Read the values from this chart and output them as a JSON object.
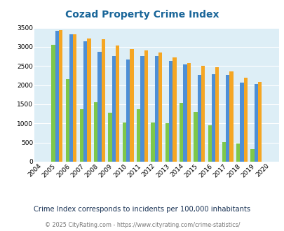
{
  "title": "Cozad Property Crime Index",
  "years": [
    2004,
    2005,
    2006,
    2007,
    2008,
    2009,
    2010,
    2011,
    2012,
    2013,
    2014,
    2015,
    2016,
    2017,
    2018,
    2019,
    2020
  ],
  "cozad": [
    null,
    3050,
    2150,
    1380,
    1550,
    1280,
    1020,
    1370,
    1020,
    1010,
    1530,
    1290,
    960,
    510,
    470,
    330,
    null
  ],
  "nebraska": [
    null,
    3420,
    3320,
    3140,
    2880,
    2770,
    2670,
    2760,
    2760,
    2640,
    2540,
    2260,
    2280,
    2270,
    2060,
    2030,
    null
  ],
  "national": [
    null,
    3430,
    3330,
    3220,
    3200,
    3040,
    2950,
    2900,
    2860,
    2730,
    2570,
    2500,
    2460,
    2360,
    2200,
    2090,
    null
  ],
  "cozad_color": "#7ec84a",
  "nebraska_color": "#4d8fd6",
  "national_color": "#f5a623",
  "bg_color": "#ddeef6",
  "title_color": "#1a6699",
  "subtitle_color": "#1a3355",
  "footer_color": "#777777",
  "footer_link_color": "#4499cc",
  "ylabel_max": 3500,
  "subtitle": "Crime Index corresponds to incidents per 100,000 inhabitants",
  "footer_text": "© 2025 CityRating.com - ",
  "footer_link": "https://www.cityrating.com/crime-statistics/"
}
